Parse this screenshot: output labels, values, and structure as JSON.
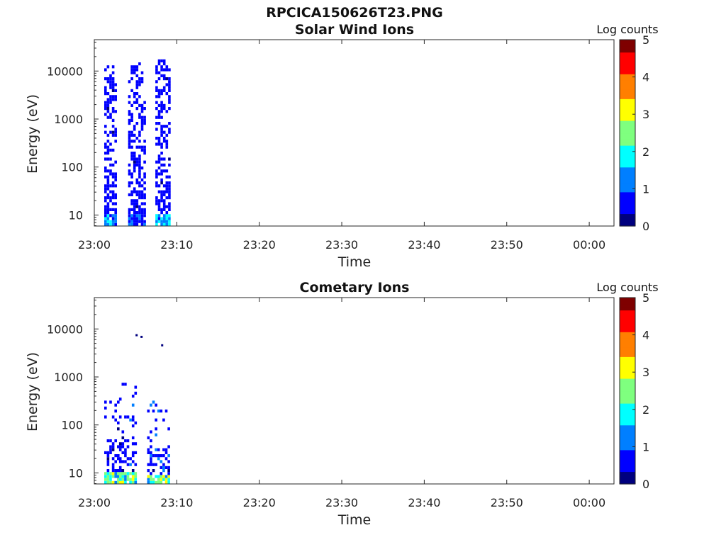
{
  "figure_title": "RPCICA150626T23.PNG",
  "colormap": [
    "#00007f",
    "#0000ff",
    "#007fff",
    "#00ffff",
    "#7fff7f",
    "#ffff00",
    "#ff7f00",
    "#ff0000",
    "#7f0000"
  ],
  "chart_data": [
    {
      "type": "heatmap",
      "title": "Solar Wind Ions",
      "xlabel": "Time",
      "ylabel": "Energy (eV)",
      "x_ticks": [
        "23:00",
        "23:10",
        "23:20",
        "23:30",
        "23:40",
        "23:50",
        "00:00"
      ],
      "x_range_minutes": [
        0,
        63
      ],
      "y_ticks": [
        "10",
        "100",
        "1000",
        "10000"
      ],
      "y_scale": "log",
      "y_range": [
        5.9,
        45000
      ],
      "colorbar": {
        "label": "Log counts",
        "ticks": [
          "0",
          "1",
          "2",
          "3",
          "4",
          "5"
        ],
        "range": [
          0,
          5
        ]
      },
      "bursts": [
        {
          "start_min": 1.2,
          "end_min": 2.6,
          "max_energy": 15000,
          "core_max_log": 2.0
        },
        {
          "start_min": 4.1,
          "end_min": 6.0,
          "max_energy": 16000,
          "core_max_log": 1.4
        },
        {
          "start_min": 7.4,
          "end_min": 9.0,
          "max_energy": 18500,
          "core_max_log": 2.1
        }
      ]
    },
    {
      "type": "heatmap",
      "title": "Cometary Ions",
      "xlabel": "Time",
      "ylabel": "Energy (eV)",
      "x_ticks": [
        "23:00",
        "23:10",
        "23:20",
        "23:30",
        "23:40",
        "23:50",
        "00:00"
      ],
      "x_range_minutes": [
        0,
        63
      ],
      "y_ticks": [
        "10",
        "100",
        "1000",
        "10000"
      ],
      "y_scale": "log",
      "y_range": [
        5.9,
        45000
      ],
      "colorbar": {
        "label": "Log counts",
        "ticks": [
          "0",
          "1",
          "2",
          "3",
          "4",
          "5"
        ],
        "range": [
          0,
          5
        ]
      },
      "bursts": [
        {
          "start_min": 1.2,
          "end_min": 2.8,
          "max_energy": 700,
          "core_max_log": 3.0
        },
        {
          "start_min": 3.0,
          "end_min": 5.0,
          "max_energy": 850,
          "core_max_log": 3.2
        },
        {
          "start_min": 6.4,
          "end_min": 9.0,
          "max_energy": 330,
          "core_max_log": 3.2
        }
      ],
      "isolated_points": [
        {
          "minute": 5.0,
          "energy": 7800
        },
        {
          "minute": 5.6,
          "energy": 7200
        },
        {
          "minute": 8.1,
          "energy": 4800
        }
      ]
    }
  ]
}
